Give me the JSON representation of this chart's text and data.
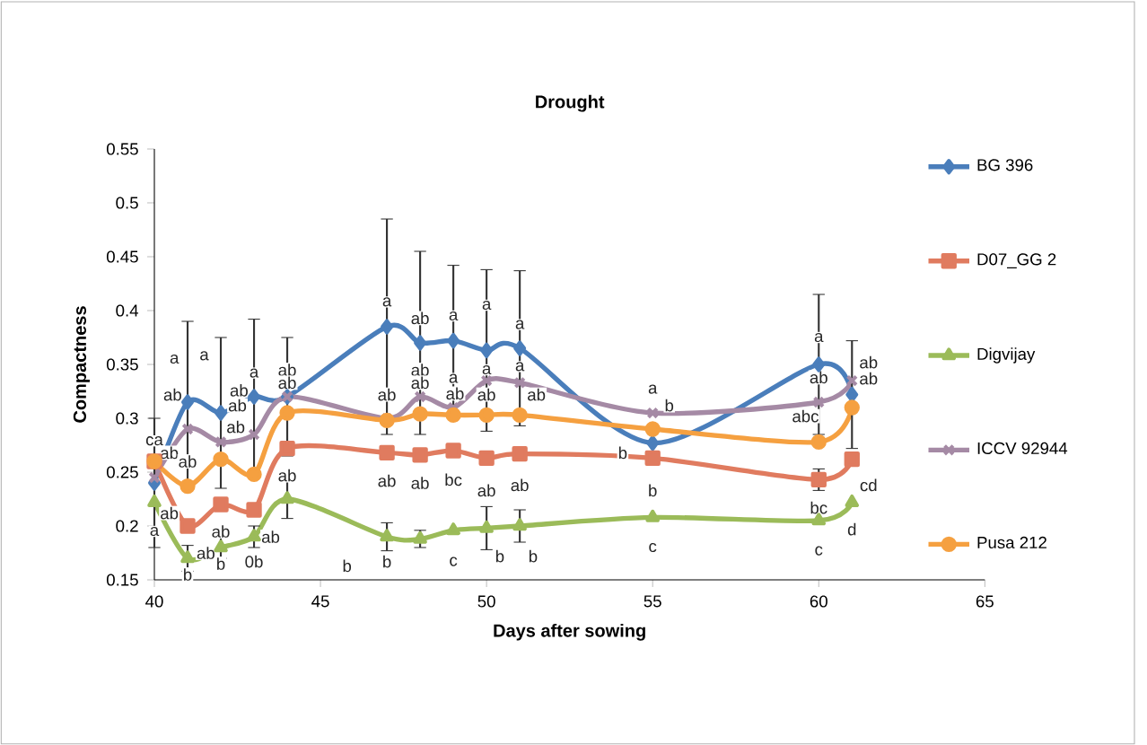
{
  "chart_data": {
    "type": "line",
    "title": "Drought",
    "xlabel": "Days after sowing",
    "ylabel": "Compactness",
    "x": [
      40,
      41,
      42,
      43,
      44,
      47,
      48,
      49,
      50,
      51,
      55,
      60,
      61
    ],
    "xlim": [
      40,
      65
    ],
    "xticks": [
      40,
      45,
      50,
      55,
      60,
      65
    ],
    "ylim": [
      0.15,
      0.55
    ],
    "yticks": [
      0.15,
      0.2,
      0.25,
      0.3,
      0.35,
      0.4,
      0.45,
      0.5,
      0.55
    ],
    "grid": false,
    "legend": "right",
    "line_style": "solid",
    "series": [
      {
        "name": "BG 396",
        "color": "#4a7ebb",
        "marker": "diamond",
        "values": [
          0.24,
          0.315,
          0.305,
          0.32,
          0.32,
          0.385,
          0.37,
          0.372,
          0.363,
          0.365,
          0.277,
          0.35,
          0.322
        ],
        "errors": [
          0.06,
          0.075,
          0.07,
          0.072,
          0.055,
          0.1,
          0.085,
          0.07,
          0.075,
          0.072,
          null,
          0.065,
          0.05
        ]
      },
      {
        "name": "D07_GG 2",
        "color": "#e07b5f",
        "marker": "square",
        "values": [
          0.26,
          0.2,
          0.22,
          0.215,
          0.272,
          0.268,
          0.266,
          0.27,
          0.263,
          0.267,
          0.263,
          0.243,
          0.262
        ],
        "errors": [
          null,
          null,
          null,
          null,
          null,
          null,
          null,
          null,
          null,
          null,
          null,
          0.01,
          null
        ]
      },
      {
        "name": "Digvijay",
        "color": "#9bbb59",
        "marker": "triangle",
        "values": [
          0.222,
          0.17,
          0.18,
          0.19,
          0.225,
          0.19,
          0.188,
          0.196,
          0.198,
          0.2,
          0.208,
          0.205,
          0.222
        ],
        "errors": [
          null,
          0.012,
          0.01,
          0.01,
          0.018,
          0.013,
          0.008,
          null,
          0.02,
          0.015,
          null,
          null,
          null
        ]
      },
      {
        "name": "ICCV 92944",
        "color": "#a58aa5",
        "marker": "cross",
        "values": [
          0.245,
          0.29,
          0.278,
          0.285,
          0.32,
          0.3,
          0.32,
          0.31,
          0.335,
          0.333,
          0.305,
          0.315,
          0.335
        ]
      },
      {
        "name": "Pusa 212",
        "color": "#f5a040",
        "marker": "circle",
        "values": [
          0.26,
          0.237,
          0.262,
          0.248,
          0.305,
          0.298,
          0.304,
          0.303,
          0.303,
          0.303,
          0.29,
          0.278,
          0.31
        ]
      }
    ],
    "annotations": [
      "a",
      "a",
      "ab",
      "ab",
      "a",
      "ab",
      "ab",
      "ab",
      "a",
      "ab",
      "a",
      "ab",
      "ab",
      "ab",
      "a",
      "ab",
      "ca",
      "ab",
      "ab",
      "a",
      "ab",
      "ab",
      "ab",
      "b",
      "ab",
      "b",
      "ab",
      "0b",
      "ab",
      "b",
      "b",
      "ab",
      "ab",
      "bc",
      "c",
      "a",
      "a",
      "a",
      "a",
      "ab",
      "ab",
      "ab",
      "ab",
      "b",
      "b",
      "a",
      "b",
      "b",
      "b",
      "c",
      "a",
      "ab",
      "abc",
      "bc",
      "c",
      "ab",
      "ab",
      "cd",
      "d"
    ]
  }
}
